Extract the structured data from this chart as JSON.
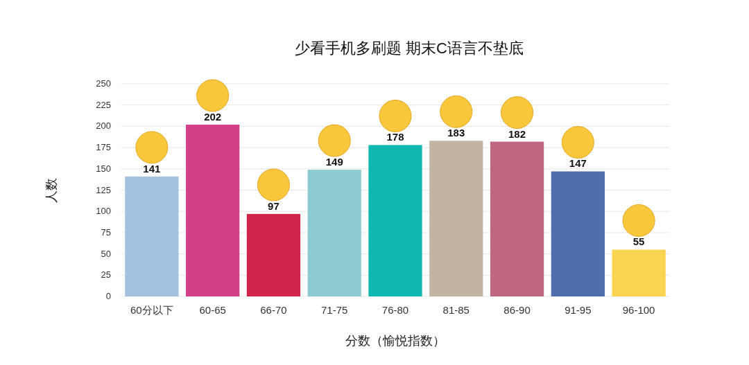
{
  "chart_data": {
    "type": "bar",
    "title": "少看手机多刷题 期末C语言不垫底",
    "xlabel": "分数（愉悦指数）",
    "ylabel": "人数",
    "categories": [
      "60分以下",
      "60-65",
      "66-70",
      "71-75",
      "76-80",
      "81-85",
      "86-90",
      "91-95",
      "96-100"
    ],
    "values": [
      141,
      202,
      97,
      149,
      178,
      183,
      182,
      147,
      55
    ],
    "colors": [
      "#a3c1de",
      "#d43f8a",
      "#d1244a",
      "#8ccbd2",
      "#0fb8b1",
      "#c2b4a2",
      "#bf677e",
      "#506dab",
      "#f9d450"
    ],
    "ylim": [
      0,
      250
    ],
    "yticks": [
      0,
      25,
      50,
      75,
      100,
      125,
      150,
      175,
      200,
      225,
      250
    ],
    "grid": "y",
    "data_labels": true
  }
}
